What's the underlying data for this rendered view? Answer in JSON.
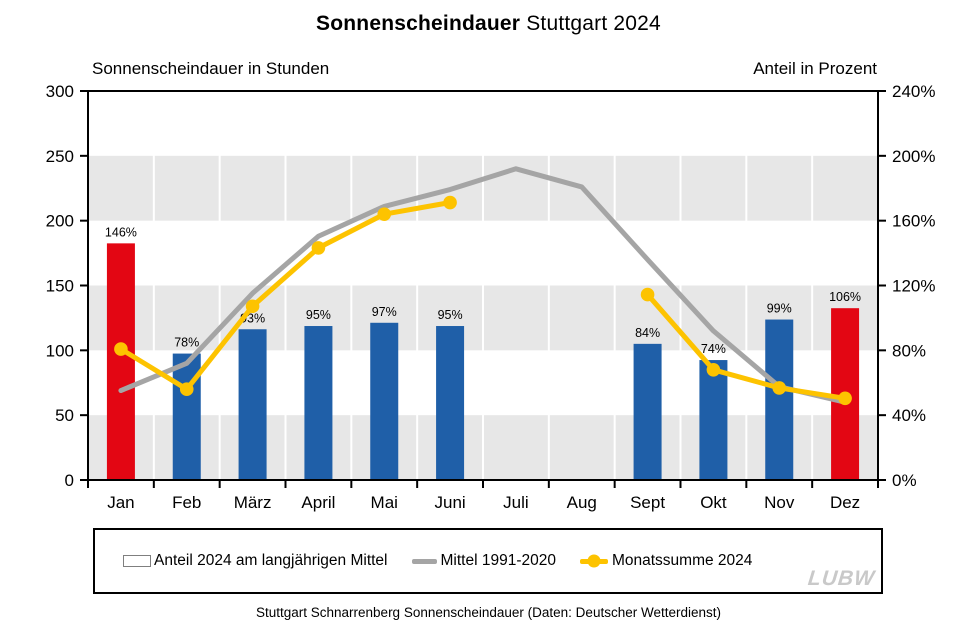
{
  "title": {
    "bold": "Sonnenscheindauer",
    "regular": " Stuttgart 2024"
  },
  "axis_headers": {
    "left": "Sonnenscheindauer  in Stunden",
    "right": "Anteil in Prozent"
  },
  "chart_data": {
    "type": "combo-bar-line",
    "categories": [
      "Jan",
      "Feb",
      "März",
      "April",
      "Mai",
      "Juni",
      "Juli",
      "Aug",
      "Sept",
      "Okt",
      "Nov",
      "Dez"
    ],
    "left_axis": {
      "label": "Sonnenscheindauer in Stunden",
      "range": [
        0,
        300
      ],
      "ticks": [
        0,
        50,
        100,
        150,
        200,
        250,
        300
      ]
    },
    "right_axis": {
      "label": "Anteil in Prozent",
      "range_percent": [
        0,
        240
      ],
      "ticks": [
        "0%",
        "40%",
        "80%",
        "120%",
        "160%",
        "200%",
        "240%"
      ]
    },
    "plot": {
      "band_color": "#e7e7e7",
      "band_ranges": [
        [
          0,
          50
        ],
        [
          100,
          150
        ],
        [
          200,
          250
        ]
      ],
      "gridline_color": "#ffffff",
      "grid": "horizontal-bands-plus-white-month-separators",
      "legend_position": "bottom"
    },
    "bar_series": {
      "name": "Anteil 2024 am langjährigen Mittel",
      "axis": "right",
      "unit": "percent",
      "values_percent": [
        146,
        78,
        93,
        95,
        97,
        95,
        null,
        null,
        84,
        74,
        99,
        106
      ],
      "labels": [
        "146%",
        "78%",
        "93%",
        "95%",
        "97%",
        "95%",
        null,
        null,
        "84%",
        "74%",
        "99%",
        "106%"
      ],
      "color_at_or_above_100": "#e30613",
      "color_below_100": "#1f5fa8"
    },
    "line_series": [
      {
        "name": "Mittel 1991-2020",
        "axis": "left",
        "unit": "hours",
        "color": "#a5a5a5",
        "marker": false,
        "values_hours": [
          69,
          90,
          144,
          188,
          211,
          224,
          240,
          226,
          170,
          115,
          72,
          60
        ]
      },
      {
        "name": "Monatssumme 2024",
        "axis": "left",
        "unit": "hours",
        "color": "#fdc300",
        "marker": true,
        "values_hours": [
          101,
          70,
          134,
          179,
          205,
          214,
          null,
          null,
          143,
          85,
          71,
          63
        ]
      }
    ]
  },
  "legend": {
    "items": [
      {
        "label": "Anteil 2024 am langjährigen Mittel",
        "swatch": "empty-bar-outline"
      },
      {
        "label": "Mittel 1991-2020",
        "swatch": "gray-line"
      },
      {
        "label": "Monatssumme 2024",
        "swatch": "yellow-line-with-dot"
      }
    ]
  },
  "watermark": "LUBW",
  "caption": "Stuttgart Schnarrenberg Sonnenscheindauer (Daten: Deutscher Wetterdienst)"
}
